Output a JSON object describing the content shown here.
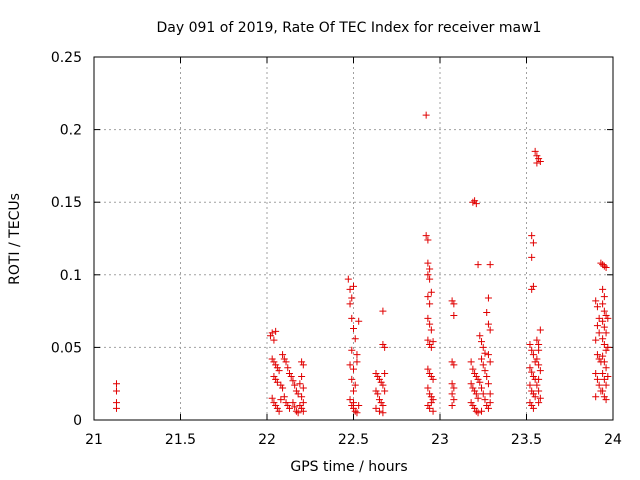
{
  "chart_data": {
    "type": "scatter",
    "title": "Day 091 of 2019, Rate Of TEC Index for receiver maw1",
    "xlabel": "GPS time / hours",
    "ylabel": "ROTI / TECUs",
    "xlim": [
      21,
      24
    ],
    "ylim": [
      0,
      0.25
    ],
    "x_ticks": [
      21,
      21.5,
      22,
      22.5,
      23,
      23.5,
      24
    ],
    "x_tick_labels": [
      "21",
      "21.5",
      "22",
      "22.5",
      "23",
      "23.5",
      "24"
    ],
    "y_ticks": [
      0,
      0.05,
      0.1,
      0.15,
      0.2,
      0.25
    ],
    "y_tick_labels": [
      "0",
      "0.05",
      "0.1",
      "0.15",
      "0.2",
      "0.25"
    ],
    "grid": true,
    "marker": "+",
    "color": "#e00000",
    "series": [
      {
        "name": "ROTI",
        "points": [
          [
            21.13,
            0.025
          ],
          [
            21.13,
            0.02
          ],
          [
            21.13,
            0.012
          ],
          [
            21.13,
            0.008
          ],
          [
            22.02,
            0.058
          ],
          [
            22.03,
            0.06
          ],
          [
            22.05,
            0.061
          ],
          [
            22.04,
            0.055
          ],
          [
            22.03,
            0.042
          ],
          [
            22.04,
            0.04
          ],
          [
            22.05,
            0.038
          ],
          [
            22.06,
            0.036
          ],
          [
            22.07,
            0.034
          ],
          [
            22.04,
            0.03
          ],
          [
            22.05,
            0.028
          ],
          [
            22.06,
            0.026
          ],
          [
            22.08,
            0.024
          ],
          [
            22.09,
            0.022
          ],
          [
            22.03,
            0.015
          ],
          [
            22.04,
            0.012
          ],
          [
            22.05,
            0.01
          ],
          [
            22.06,
            0.008
          ],
          [
            22.07,
            0.006
          ],
          [
            22.08,
            0.014
          ],
          [
            22.1,
            0.016
          ],
          [
            22.11,
            0.012
          ],
          [
            22.12,
            0.01
          ],
          [
            22.13,
            0.008
          ],
          [
            22.09,
            0.045
          ],
          [
            22.1,
            0.042
          ],
          [
            22.11,
            0.04
          ],
          [
            22.12,
            0.036
          ],
          [
            22.13,
            0.032
          ],
          [
            22.14,
            0.03
          ],
          [
            22.15,
            0.027
          ],
          [
            22.16,
            0.024
          ],
          [
            22.17,
            0.02
          ],
          [
            22.18,
            0.018
          ],
          [
            22.15,
            0.012
          ],
          [
            22.16,
            0.009
          ],
          [
            22.17,
            0.006
          ],
          [
            22.18,
            0.005
          ],
          [
            22.19,
            0.01
          ],
          [
            22.2,
            0.04
          ],
          [
            22.21,
            0.038
          ],
          [
            22.2,
            0.03
          ],
          [
            22.21,
            0.022
          ],
          [
            22.2,
            0.016
          ],
          [
            22.21,
            0.012
          ],
          [
            22.2,
            0.008
          ],
          [
            22.21,
            0.006
          ],
          [
            22.19,
            0.025
          ],
          [
            22.47,
            0.097
          ],
          [
            22.48,
            0.09
          ],
          [
            22.49,
            0.084
          ],
          [
            22.5,
            0.092
          ],
          [
            22.48,
            0.08
          ],
          [
            22.49,
            0.07
          ],
          [
            22.5,
            0.063
          ],
          [
            22.51,
            0.056
          ],
          [
            22.49,
            0.048
          ],
          [
            22.52,
            0.045
          ],
          [
            22.48,
            0.038
          ],
          [
            22.5,
            0.035
          ],
          [
            22.49,
            0.028
          ],
          [
            22.51,
            0.024
          ],
          [
            22.5,
            0.02
          ],
          [
            22.48,
            0.014
          ],
          [
            22.49,
            0.01
          ],
          [
            22.5,
            0.008
          ],
          [
            22.51,
            0.006
          ],
          [
            22.52,
            0.005
          ],
          [
            22.53,
            0.068
          ],
          [
            22.52,
            0.04
          ],
          [
            22.53,
            0.01
          ],
          [
            22.5,
            0.012
          ],
          [
            22.63,
            0.032
          ],
          [
            22.64,
            0.03
          ],
          [
            22.65,
            0.028
          ],
          [
            22.66,
            0.026
          ],
          [
            22.67,
            0.024
          ],
          [
            22.63,
            0.02
          ],
          [
            22.64,
            0.018
          ],
          [
            22.65,
            0.014
          ],
          [
            22.66,
            0.012
          ],
          [
            22.67,
            0.01
          ],
          [
            22.63,
            0.008
          ],
          [
            22.65,
            0.006
          ],
          [
            22.67,
            0.005
          ],
          [
            22.68,
            0.032
          ],
          [
            22.68,
            0.02
          ],
          [
            22.67,
            0.075
          ],
          [
            22.67,
            0.052
          ],
          [
            22.68,
            0.05
          ],
          [
            22.92,
            0.21
          ],
          [
            22.92,
            0.127
          ],
          [
            22.93,
            0.124
          ],
          [
            22.93,
            0.108
          ],
          [
            22.94,
            0.104
          ],
          [
            22.93,
            0.1
          ],
          [
            22.94,
            0.097
          ],
          [
            22.93,
            0.085
          ],
          [
            22.94,
            0.08
          ],
          [
            22.95,
            0.088
          ],
          [
            22.93,
            0.07
          ],
          [
            22.94,
            0.066
          ],
          [
            22.95,
            0.062
          ],
          [
            22.93,
            0.055
          ],
          [
            22.94,
            0.052
          ],
          [
            22.95,
            0.05
          ],
          [
            22.96,
            0.054
          ],
          [
            22.93,
            0.035
          ],
          [
            22.94,
            0.032
          ],
          [
            22.95,
            0.03
          ],
          [
            22.96,
            0.028
          ],
          [
            22.93,
            0.022
          ],
          [
            22.94,
            0.018
          ],
          [
            22.95,
            0.016
          ],
          [
            22.96,
            0.014
          ],
          [
            22.93,
            0.01
          ],
          [
            22.94,
            0.008
          ],
          [
            22.95,
            0.012
          ],
          [
            22.96,
            0.006
          ],
          [
            23.07,
            0.082
          ],
          [
            23.08,
            0.08
          ],
          [
            23.08,
            0.072
          ],
          [
            23.07,
            0.04
          ],
          [
            23.08,
            0.038
          ],
          [
            23.07,
            0.025
          ],
          [
            23.08,
            0.022
          ],
          [
            23.07,
            0.018
          ],
          [
            23.08,
            0.014
          ],
          [
            23.07,
            0.01
          ],
          [
            23.19,
            0.15
          ],
          [
            23.2,
            0.151
          ],
          [
            23.21,
            0.149
          ],
          [
            23.22,
            0.107
          ],
          [
            23.18,
            0.04
          ],
          [
            23.19,
            0.035
          ],
          [
            23.2,
            0.032
          ],
          [
            23.21,
            0.03
          ],
          [
            23.22,
            0.028
          ],
          [
            23.18,
            0.025
          ],
          [
            23.19,
            0.022
          ],
          [
            23.2,
            0.02
          ],
          [
            23.21,
            0.018
          ],
          [
            23.22,
            0.015
          ],
          [
            23.18,
            0.012
          ],
          [
            23.19,
            0.01
          ],
          [
            23.2,
            0.008
          ],
          [
            23.21,
            0.006
          ],
          [
            23.22,
            0.005
          ],
          [
            23.23,
            0.058
          ],
          [
            23.24,
            0.054
          ],
          [
            23.25,
            0.05
          ],
          [
            23.26,
            0.046
          ],
          [
            23.24,
            0.042
          ],
          [
            23.25,
            0.038
          ],
          [
            23.26,
            0.034
          ],
          [
            23.27,
            0.03
          ],
          [
            23.23,
            0.026
          ],
          [
            23.24,
            0.022
          ],
          [
            23.25,
            0.018
          ],
          [
            23.26,
            0.014
          ],
          [
            23.27,
            0.01
          ],
          [
            23.28,
            0.008
          ],
          [
            23.24,
            0.006
          ],
          [
            23.27,
            0.074
          ],
          [
            23.28,
            0.084
          ],
          [
            23.29,
            0.107
          ],
          [
            23.28,
            0.066
          ],
          [
            23.29,
            0.062
          ],
          [
            23.28,
            0.045
          ],
          [
            23.29,
            0.04
          ],
          [
            23.28,
            0.025
          ],
          [
            23.29,
            0.018
          ],
          [
            23.29,
            0.012
          ],
          [
            23.53,
            0.127
          ],
          [
            23.54,
            0.122
          ],
          [
            23.53,
            0.112
          ],
          [
            23.54,
            0.092
          ],
          [
            23.53,
            0.09
          ],
          [
            23.52,
            0.052
          ],
          [
            23.53,
            0.048
          ],
          [
            23.54,
            0.045
          ],
          [
            23.55,
            0.04
          ],
          [
            23.52,
            0.036
          ],
          [
            23.53,
            0.033
          ],
          [
            23.54,
            0.03
          ],
          [
            23.55,
            0.028
          ],
          [
            23.52,
            0.024
          ],
          [
            23.53,
            0.02
          ],
          [
            23.54,
            0.018
          ],
          [
            23.55,
            0.016
          ],
          [
            23.52,
            0.012
          ],
          [
            23.53,
            0.01
          ],
          [
            23.54,
            0.008
          ],
          [
            23.55,
            0.185
          ],
          [
            23.56,
            0.182
          ],
          [
            23.57,
            0.18
          ],
          [
            23.58,
            0.178
          ],
          [
            23.56,
            0.177
          ],
          [
            23.56,
            0.055
          ],
          [
            23.57,
            0.052
          ],
          [
            23.58,
            0.062
          ],
          [
            23.57,
            0.048
          ],
          [
            23.56,
            0.042
          ],
          [
            23.57,
            0.038
          ],
          [
            23.58,
            0.034
          ],
          [
            23.57,
            0.028
          ],
          [
            23.56,
            0.024
          ],
          [
            23.57,
            0.02
          ],
          [
            23.58,
            0.015
          ],
          [
            23.57,
            0.012
          ],
          [
            23.9,
            0.082
          ],
          [
            23.91,
            0.078
          ],
          [
            23.92,
            0.07
          ],
          [
            23.91,
            0.065
          ],
          [
            23.92,
            0.06
          ],
          [
            23.9,
            0.055
          ],
          [
            23.91,
            0.045
          ],
          [
            23.92,
            0.042
          ],
          [
            23.93,
            0.04
          ],
          [
            23.9,
            0.032
          ],
          [
            23.91,
            0.028
          ],
          [
            23.92,
            0.024
          ],
          [
            23.93,
            0.02
          ],
          [
            23.9,
            0.016
          ],
          [
            23.93,
            0.108
          ],
          [
            23.94,
            0.107
          ],
          [
            23.95,
            0.106
          ],
          [
            23.96,
            0.105
          ],
          [
            23.94,
            0.09
          ],
          [
            23.95,
            0.085
          ],
          [
            23.94,
            0.08
          ],
          [
            23.95,
            0.075
          ],
          [
            23.96,
            0.072
          ],
          [
            23.94,
            0.068
          ],
          [
            23.95,
            0.064
          ],
          [
            23.96,
            0.06
          ],
          [
            23.94,
            0.056
          ],
          [
            23.95,
            0.052
          ],
          [
            23.96,
            0.048
          ],
          [
            23.94,
            0.044
          ],
          [
            23.95,
            0.04
          ],
          [
            23.96,
            0.036
          ],
          [
            23.94,
            0.032
          ],
          [
            23.95,
            0.028
          ],
          [
            23.96,
            0.024
          ],
          [
            23.94,
            0.02
          ],
          [
            23.95,
            0.016
          ],
          [
            23.96,
            0.014
          ],
          [
            23.97,
            0.07
          ],
          [
            23.97,
            0.05
          ],
          [
            23.97,
            0.03
          ]
        ]
      }
    ]
  }
}
